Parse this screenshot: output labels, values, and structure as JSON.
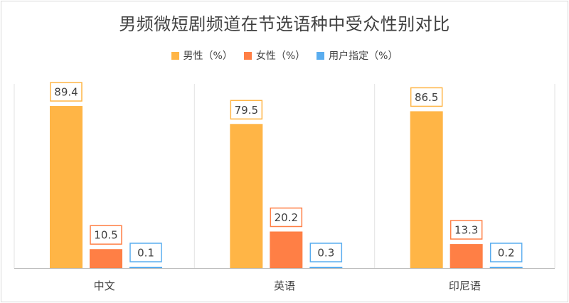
{
  "chart_data": {
    "type": "bar",
    "title": "男频微短剧频道在节选语种中受众性别对比",
    "categories": [
      "中文",
      "英语",
      "印尼语"
    ],
    "series": [
      {
        "name": "男性（%）",
        "color": "#FFB546",
        "values": [
          89.4,
          79.5,
          86.5
        ]
      },
      {
        "name": "女性（%）",
        "color": "#FF7F45",
        "values": [
          10.5,
          20.2,
          13.3
        ]
      },
      {
        "name": "用户指定（%）",
        "color": "#5AADEF",
        "values": [
          0.1,
          0.3,
          0.2
        ]
      }
    ],
    "ylim": [
      0,
      100
    ],
    "grid": true,
    "legend_position": "top"
  }
}
